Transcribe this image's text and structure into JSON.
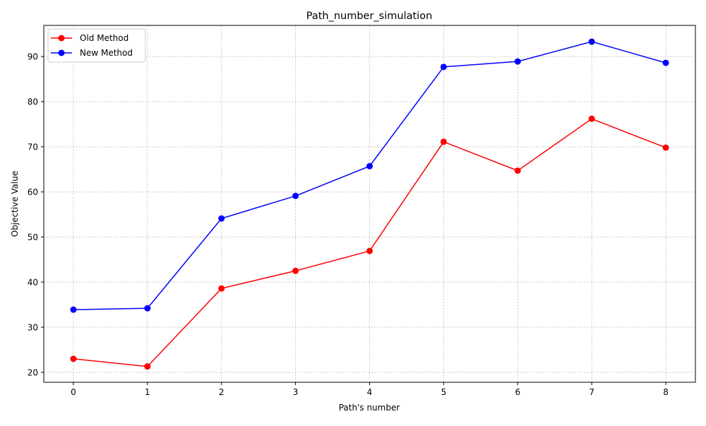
{
  "chart_data": {
    "type": "line",
    "title": "Path_number_simulation",
    "xlabel": "Path's number",
    "ylabel": "Objective Value",
    "x": [
      0,
      1,
      2,
      3,
      4,
      5,
      6,
      7,
      8
    ],
    "xlim": [
      -0.4,
      8.4
    ],
    "ylim": [
      17.8,
      96.9
    ],
    "xticks": [
      0,
      1,
      2,
      3,
      4,
      5,
      6,
      7,
      8
    ],
    "yticks": [
      20,
      30,
      40,
      50,
      60,
      70,
      80,
      90
    ],
    "grid": true,
    "legend_position": "top-left",
    "series": [
      {
        "name": "Old Method",
        "color": "#ff0000",
        "values": [
          23.0,
          21.3,
          38.6,
          42.5,
          46.9,
          71.1,
          64.7,
          76.2,
          69.8
        ]
      },
      {
        "name": "New Method",
        "color": "#0000ff",
        "values": [
          33.9,
          34.2,
          54.1,
          59.1,
          65.7,
          87.7,
          88.9,
          93.3,
          88.6
        ]
      }
    ]
  }
}
